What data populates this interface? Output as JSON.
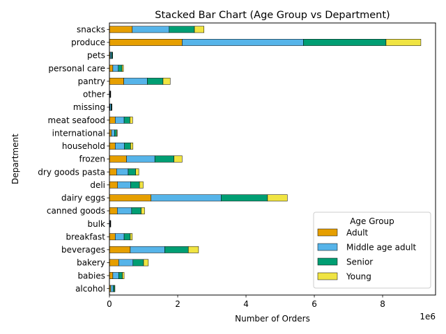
{
  "chart_data": {
    "type": "bar",
    "orientation": "horizontal",
    "stacked": true,
    "title": "Stacked Bar Chart (Age Group vs Department)",
    "xlabel": "Number of Orders",
    "ylabel": "Department",
    "x_offset_label": "1e6",
    "x_tick_labels": [
      "0",
      "2",
      "4",
      "6",
      "8"
    ],
    "xlim": [
      0,
      9550000
    ],
    "grid": false,
    "legend_title": "Age Group",
    "legend_position": "lower right",
    "categories": [
      "alcohol",
      "babies",
      "bakery",
      "beverages",
      "breakfast",
      "bulk",
      "canned goods",
      "dairy eggs",
      "deli",
      "dry goods pasta",
      "frozen",
      "household",
      "international",
      "meat seafood",
      "missing",
      "other",
      "pantry",
      "personal care",
      "pets",
      "produce",
      "snacks"
    ],
    "series": [
      {
        "name": "Adult",
        "color": "#E69F00",
        "values": [
          40000,
          100000,
          270000,
          610000,
          170000,
          8000,
          230000,
          1220000,
          240000,
          210000,
          500000,
          170000,
          60000,
          170000,
          16000,
          8000,
          420000,
          100000,
          23000,
          2130000,
          670000
        ]
      },
      {
        "name": "Middle age adult",
        "color": "#56B4E9",
        "values": [
          70000,
          170000,
          420000,
          1010000,
          260000,
          14000,
          420000,
          2050000,
          380000,
          340000,
          830000,
          270000,
          90000,
          260000,
          30000,
          13000,
          690000,
          160000,
          37000,
          3550000,
          1080000
        ]
      },
      {
        "name": "Senior",
        "color": "#009E73",
        "values": [
          40000,
          110000,
          310000,
          690000,
          180000,
          9000,
          280000,
          1360000,
          260000,
          220000,
          560000,
          180000,
          60000,
          170000,
          19000,
          9000,
          460000,
          110000,
          25000,
          2420000,
          740000
        ]
      },
      {
        "name": "Young",
        "color": "#F0E442",
        "values": [
          12000,
          50000,
          140000,
          300000,
          60000,
          4000,
          100000,
          580000,
          110000,
          90000,
          240000,
          70000,
          20000,
          80000,
          7000,
          4000,
          210000,
          40000,
          9000,
          1020000,
          280000
        ]
      }
    ]
  }
}
